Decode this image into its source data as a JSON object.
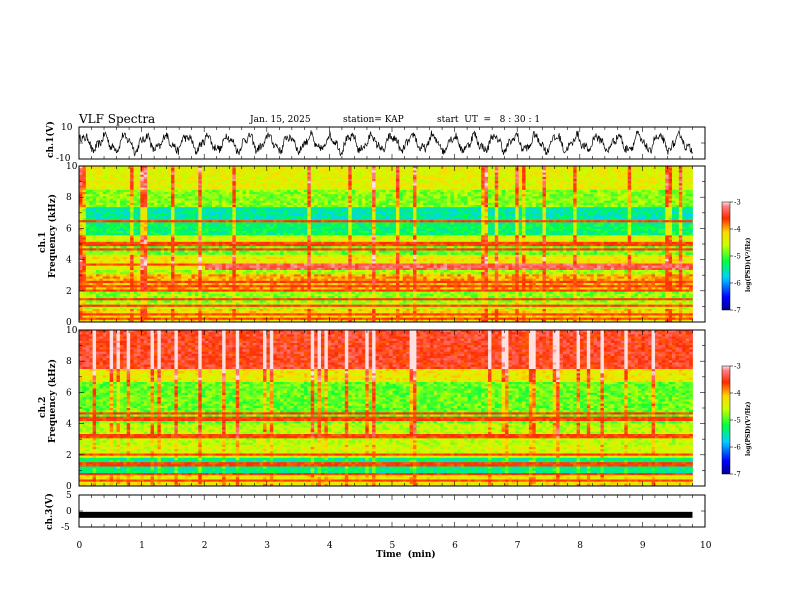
{
  "header": {
    "title": "VLF Spectra",
    "date": "Jan. 15, 2025",
    "station": "station= KAP",
    "start": "start  UT  =   8 : 30 : 1"
  },
  "chart_data": [
    {
      "type": "line",
      "panel": "ch1-waveform",
      "ylabel": "ch.1(V)",
      "ylim": [
        -10,
        10
      ],
      "yticks": [
        "10",
        "-10"
      ],
      "xlim": [
        0,
        10
      ],
      "data_span_min": [
        0,
        9.8
      ],
      "trace": "noisy oscillating voltage, roughly between -7 and 7 V, about 30 swings over the record"
    },
    {
      "type": "heatmap",
      "panel": "ch1-spectrogram",
      "ylabel_line1": "ch.1",
      "ylabel_line2": "Frequency (kHz)",
      "ylim": [
        0,
        10
      ],
      "yticks": [
        "10",
        "8",
        "6",
        "4",
        "2",
        "0"
      ],
      "xlim": [
        0,
        10
      ],
      "data_span_min": [
        0,
        9.8
      ],
      "colorbar": {
        "label": "log(PSD)(V²/Hz)",
        "range": [
          -7,
          -3
        ],
        "ticks": [
          "-3",
          "-4",
          "-5",
          "-6",
          "-7"
        ]
      },
      "bands": [
        {
          "f": [
            0.0,
            0.8
          ],
          "logpsd": -4.2
        },
        {
          "f": [
            0.8,
            1.3
          ],
          "logpsd": -4.6
        },
        {
          "f": [
            1.3,
            2.0
          ],
          "logpsd": -4.8
        },
        {
          "f": [
            2.0,
            3.0
          ],
          "logpsd": -4.0
        },
        {
          "f": [
            3.0,
            3.4
          ],
          "logpsd": -4.7
        },
        {
          "f": [
            3.4,
            4.3
          ],
          "logpsd": -4.3
        },
        {
          "f": [
            4.3,
            5.0
          ],
          "logpsd": -4.9
        },
        {
          "f": [
            5.0,
            5.6
          ],
          "logpsd": -4.5
        },
        {
          "f": [
            5.6,
            6.4
          ],
          "logpsd": -5.3
        },
        {
          "f": [
            6.4,
            7.4
          ],
          "logpsd": -5.5
        },
        {
          "f": [
            7.4,
            8.5
          ],
          "logpsd": -4.8
        },
        {
          "f": [
            8.5,
            10.0
          ],
          "logpsd": -4.4
        }
      ],
      "lines_khz": [
        0.2,
        0.5,
        1.0,
        1.5,
        2.0,
        2.3,
        2.6,
        3.7,
        4.7,
        5.0,
        6.5
      ],
      "enhanced_interval": {
        "time_min": [
          2.0,
          9.8
        ],
        "f_khz": [
          3.4,
          3.8
        ],
        "logpsd": -3.3
      }
    },
    {
      "type": "heatmap",
      "panel": "ch2-spectrogram",
      "ylabel_line1": "ch.2",
      "ylabel_line2": "Frequency (kHz)",
      "ylim": [
        0,
        10
      ],
      "yticks": [
        "10",
        "8",
        "6",
        "4",
        "2",
        "0"
      ],
      "xlim": [
        0,
        10
      ],
      "data_span_min": [
        0,
        9.8
      ],
      "colorbar": {
        "label": "log(PSD)(V²/Hz)",
        "range": [
          -7,
          -3
        ],
        "ticks": [
          "-3",
          "-4",
          "-5",
          "-6",
          "-7"
        ]
      },
      "bands": [
        {
          "f": [
            0.0,
            0.8
          ],
          "logpsd": -4.3
        },
        {
          "f": [
            0.8,
            1.8
          ],
          "logpsd": -5.4
        },
        {
          "f": [
            1.8,
            2.6
          ],
          "logpsd": -4.5
        },
        {
          "f": [
            2.6,
            4.0
          ],
          "logpsd": -4.6
        },
        {
          "f": [
            4.0,
            6.6
          ],
          "logpsd": -4.9
        },
        {
          "f": [
            6.6,
            7.5
          ],
          "logpsd": -4.3
        },
        {
          "f": [
            7.5,
            10.0
          ],
          "logpsd": -3.5
        }
      ],
      "lines_khz": [
        0.3,
        0.8,
        1.4,
        2.0,
        3.2,
        4.3,
        4.7
      ],
      "enhanced_interval": null
    },
    {
      "type": "line",
      "panel": "ch3-waveform",
      "ylabel": "ch.3(V)",
      "ylim": [
        -5,
        5
      ],
      "yticks": [
        "5",
        "0",
        "-5"
      ],
      "xlim": [
        0,
        10
      ],
      "data_span_min": [
        0,
        9.8
      ],
      "level_v": -1.2,
      "xlabel": "Time  (min)",
      "xticks": [
        "0",
        "1",
        "2",
        "3",
        "4",
        "5",
        "6",
        "7",
        "8",
        "9",
        "10"
      ]
    }
  ]
}
